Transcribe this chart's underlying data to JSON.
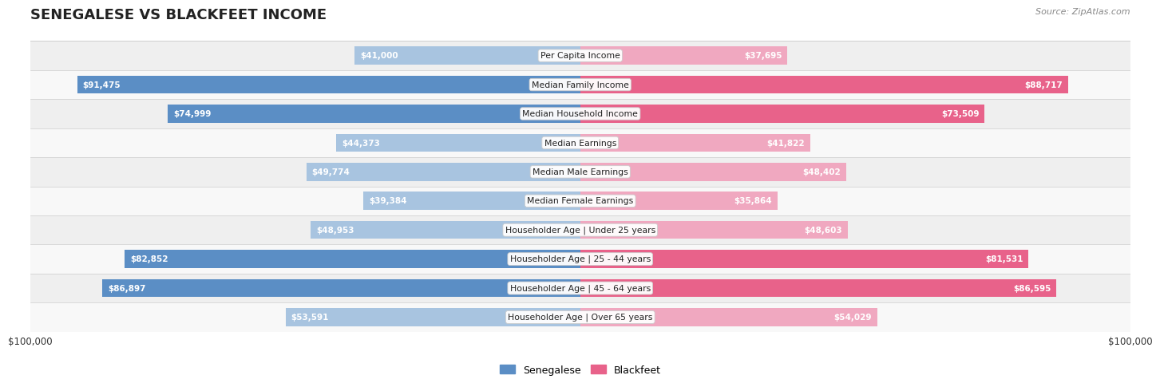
{
  "title": "SENEGALESE VS BLACKFEET INCOME",
  "source": "Source: ZipAtlas.com",
  "max_value": 100000,
  "categories": [
    "Per Capita Income",
    "Median Family Income",
    "Median Household Income",
    "Median Earnings",
    "Median Male Earnings",
    "Median Female Earnings",
    "Householder Age | Under 25 years",
    "Householder Age | 25 - 44 years",
    "Householder Age | 45 - 64 years",
    "Householder Age | Over 65 years"
  ],
  "senegalese": [
    41000,
    91475,
    74999,
    44373,
    49774,
    39384,
    48953,
    82852,
    86897,
    53591
  ],
  "blackfeet": [
    37695,
    88717,
    73509,
    41822,
    48402,
    35864,
    48603,
    81531,
    86595,
    54029
  ],
  "senegalese_labels": [
    "$41,000",
    "$91,475",
    "$74,999",
    "$44,373",
    "$49,774",
    "$39,384",
    "$48,953",
    "$82,852",
    "$86,897",
    "$53,591"
  ],
  "blackfeet_labels": [
    "$37,695",
    "$88,717",
    "$73,509",
    "$41,822",
    "$48,402",
    "$35,864",
    "$48,603",
    "$81,531",
    "$86,595",
    "$54,029"
  ],
  "color_senegalese_dark": "#5B8EC5",
  "color_senegalese_light": "#A8C4E0",
  "color_blackfeet_dark": "#E8628A",
  "color_blackfeet_light": "#F0A8C0",
  "bar_height": 0.62,
  "row_bg_even": "#EFEFEF",
  "row_bg_odd": "#F8F8F8",
  "dark_threshold": 65000,
  "inside_label_threshold": 0.25
}
